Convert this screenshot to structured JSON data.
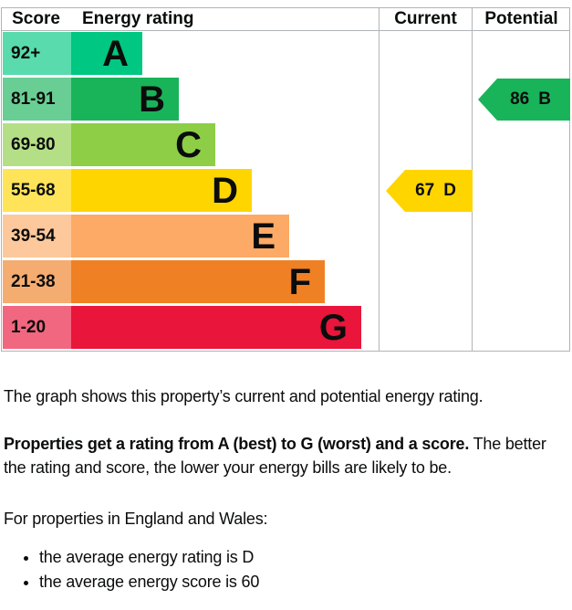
{
  "page": {
    "background": "#ffffff",
    "text_color": "#0b0c0c",
    "border_color": "#b1b4b6"
  },
  "chart": {
    "header": {
      "score": "Score",
      "energy_rating": "Energy rating",
      "current": "Current",
      "potential": "Potential"
    },
    "bands": [
      {
        "range": "92+",
        "letter": "A",
        "color": "#00c781",
        "tint": "#00c781a6"
      },
      {
        "range": "81-91",
        "letter": "B",
        "color": "#19b459",
        "tint": "#19b459a6"
      },
      {
        "range": "69-80",
        "letter": "C",
        "color": "#8dce46",
        "tint": "#8dce46a6"
      },
      {
        "range": "55-68",
        "letter": "D",
        "color": "#ffd500",
        "tint": "#ffd500a6"
      },
      {
        "range": "39-54",
        "letter": "E",
        "color": "#fcaa65",
        "tint": "#fcaa65a6"
      },
      {
        "range": "21-38",
        "letter": "F",
        "color": "#ef8023",
        "tint": "#ef8023a6"
      },
      {
        "range": "1-20",
        "letter": "G",
        "color": "#e9153b",
        "tint": "#e9153ba6"
      }
    ],
    "current": {
      "score": "67",
      "rating": "D",
      "color": "#ffd500"
    },
    "potential": {
      "score": "86",
      "rating": "B",
      "color": "#19b459"
    }
  },
  "chart_data": {
    "type": "bar",
    "title": "Energy efficiency rating chart",
    "columns": [
      "Score",
      "Energy rating",
      "Current",
      "Potential"
    ],
    "categories": [
      "A",
      "B",
      "C",
      "D",
      "E",
      "F",
      "G"
    ],
    "score_ranges": [
      "92+",
      "81-91",
      "69-80",
      "55-68",
      "39-54",
      "21-38",
      "1-20"
    ],
    "band_colors": [
      "#00c781",
      "#19b459",
      "#8dce46",
      "#ffd500",
      "#fcaa65",
      "#ef8023",
      "#e9153b"
    ],
    "current": {
      "score": 67,
      "rating": "D"
    },
    "potential": {
      "score": 86,
      "rating": "B"
    }
  },
  "description": {
    "intro": "The graph shows this property’s current and potential energy rating.",
    "rating_bold": "Properties get a rating from A (best) to G (worst) and a score.",
    "rating_rest": " The better the rating and score, the lower your energy bills are likely to be.",
    "region_heading": "For properties in England and Wales:",
    "bullets": [
      "the average energy rating is D",
      "the average energy score is 60"
    ]
  }
}
